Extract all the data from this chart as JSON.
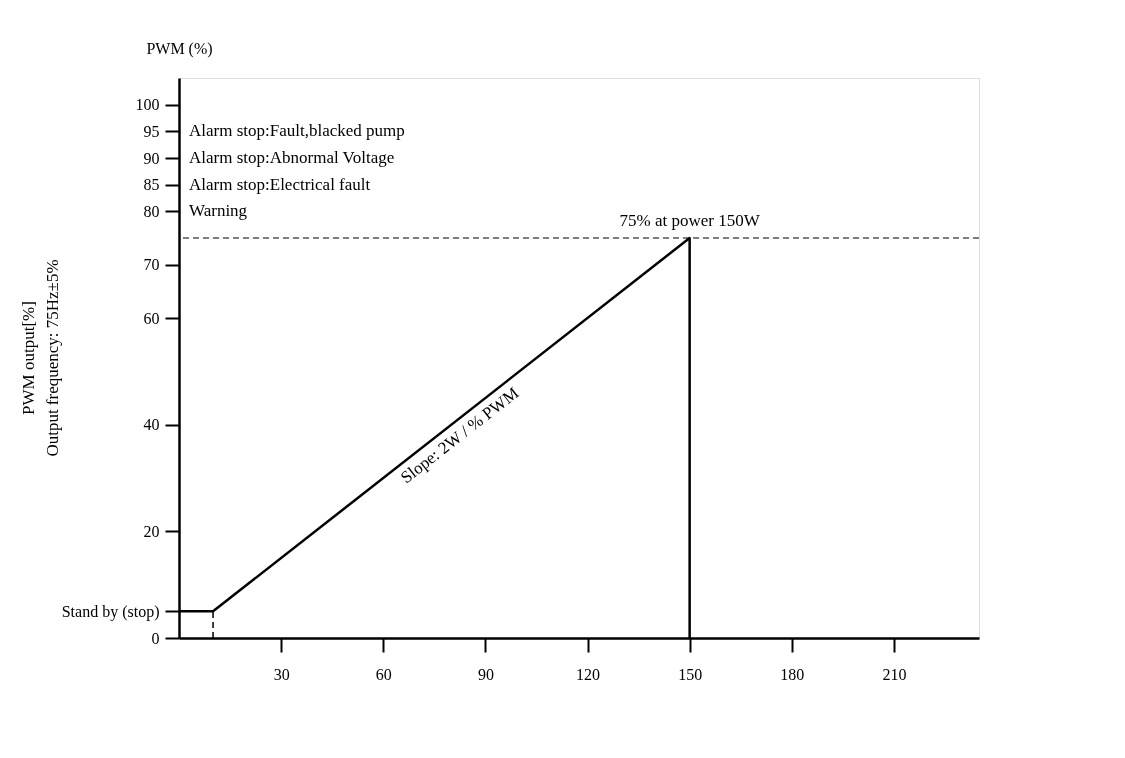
{
  "chart_data": {
    "type": "line",
    "ylabel": "PWM (%)",
    "xlim": [
      0,
      235
    ],
    "xticks": [
      30,
      60,
      90,
      120,
      150,
      180,
      210
    ],
    "ylim": [
      0,
      105
    ],
    "yticks": [
      0,
      {
        "value": 5,
        "label": "Stand by (stop)"
      },
      20,
      40,
      60,
      70,
      80,
      85,
      90,
      95,
      100
    ],
    "grid": false,
    "line_style": "solid",
    "marker": "none",
    "series": [
      {
        "color": "#000000",
        "x": [
          0,
          10,
          150,
          150
        ],
        "values": [
          5,
          5,
          75,
          0
        ]
      },
      {
        "color": "#000000",
        "x": [
          10,
          10
        ],
        "values": [
          0,
          5
        ],
        "line_style": "dashed"
      }
    ],
    "ref_lines": [
      {
        "axis": "y",
        "value": 75,
        "label": "75% at power 150W",
        "color": "#000000",
        "line_style": "dashed"
      }
    ],
    "annotations": [
      "PWM output[%]",
      "Output frequency: 75Hz±5%",
      "Alarm stop:Fault,blacked pump",
      "Alarm stop:Abnormal Voltage",
      "Alarm stop:Electrical fault",
      "Warning",
      {
        "text": "Slope: 2W / % PWM",
        "x": 80,
        "y": 40
      }
    ]
  }
}
